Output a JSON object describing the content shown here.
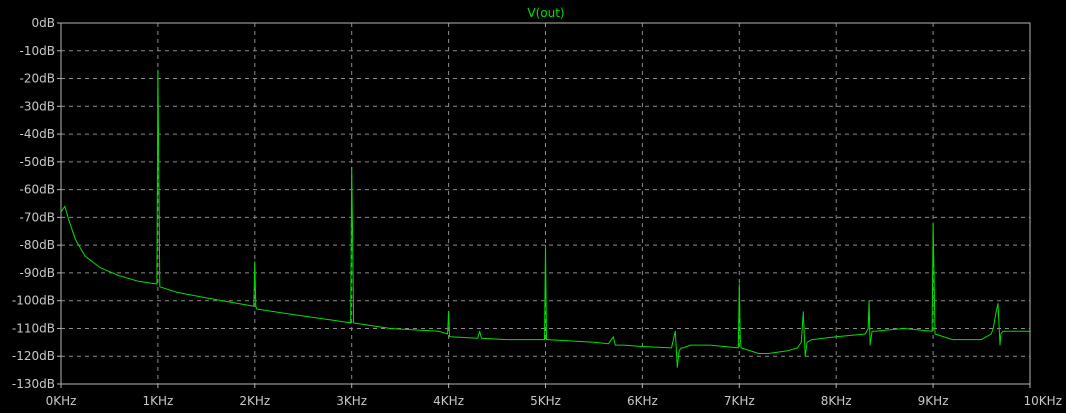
{
  "chart_data": {
    "type": "line",
    "title": "V(out)",
    "xlabel": "",
    "ylabel": "",
    "xlim": [
      0,
      10000
    ],
    "ylim": [
      -130,
      0
    ],
    "grid": true,
    "x_ticks": [
      "0KHz",
      "1KHz",
      "2KHz",
      "3KHz",
      "4KHz",
      "5KHz",
      "6KHz",
      "7KHz",
      "8KHz",
      "9KHz",
      "10KHz"
    ],
    "y_ticks": [
      "0dB",
      "-10dB",
      "-20dB",
      "-30dB",
      "-40dB",
      "-50dB",
      "-60dB",
      "-70dB",
      "-80dB",
      "-90dB",
      "-100dB",
      "-110dB",
      "-120dB",
      "-130dB"
    ],
    "colors": {
      "background": "#000000",
      "frame": "#b4b4b4",
      "grid": "#8c8c8c",
      "trace": "#00e000",
      "title": "#00e000"
    },
    "series": [
      {
        "name": "V(out)",
        "color": "#00e000",
        "x": [
          0,
          40,
          80,
          150,
          250,
          400,
          600,
          800,
          990,
          1000,
          1010,
          1020,
          1200,
          1500,
          1990,
          2000,
          2010,
          2020,
          2400,
          2800,
          2990,
          3000,
          3010,
          3020,
          3400,
          3900,
          3990,
          4000,
          4010,
          4020,
          4300,
          4320,
          4340,
          4600,
          4990,
          5000,
          5010,
          5020,
          5500,
          5650,
          5700,
          5720,
          5800,
          6000,
          6300,
          6340,
          6360,
          6380,
          6400,
          6420,
          6500,
          6700,
          6990,
          7000,
          7010,
          7020,
          7200,
          7300,
          7500,
          7600,
          7640,
          7660,
          7680,
          7700,
          7750,
          8000,
          8300,
          8330,
          8340,
          8350,
          8370,
          8400,
          8700,
          8990,
          9000,
          9010,
          9020,
          9200,
          9500,
          9600,
          9620,
          9650,
          9670,
          9690,
          9700,
          9720,
          9800,
          10000
        ],
        "y": [
          -68,
          -66,
          -71,
          -78,
          -84,
          -88,
          -91,
          -93,
          -94,
          -17,
          -56,
          -95,
          -97,
          -99,
          -102,
          -86,
          -102,
          -103,
          -105,
          -107,
          -108,
          -52,
          -80,
          -108,
          -110,
          -111,
          -112,
          -104,
          -113,
          -113,
          -113.5,
          -111,
          -113.5,
          -114,
          -114,
          -80,
          -114,
          -114,
          -115,
          -115.5,
          -113,
          -116,
          -116,
          -116.5,
          -117,
          -111,
          -124,
          -118,
          -117,
          -117,
          -116,
          -116,
          -117,
          -94,
          -114,
          -117,
          -119,
          -119,
          -118,
          -117,
          -115,
          -104,
          -120,
          -115,
          -114,
          -113,
          -112,
          -110,
          -100,
          -116,
          -111,
          -111,
          -110,
          -111,
          -72,
          -92,
          -112,
          -114,
          -114,
          -112,
          -110,
          -104,
          -101,
          -116,
          -112,
          -111,
          -111,
          -111
        ]
      }
    ]
  }
}
